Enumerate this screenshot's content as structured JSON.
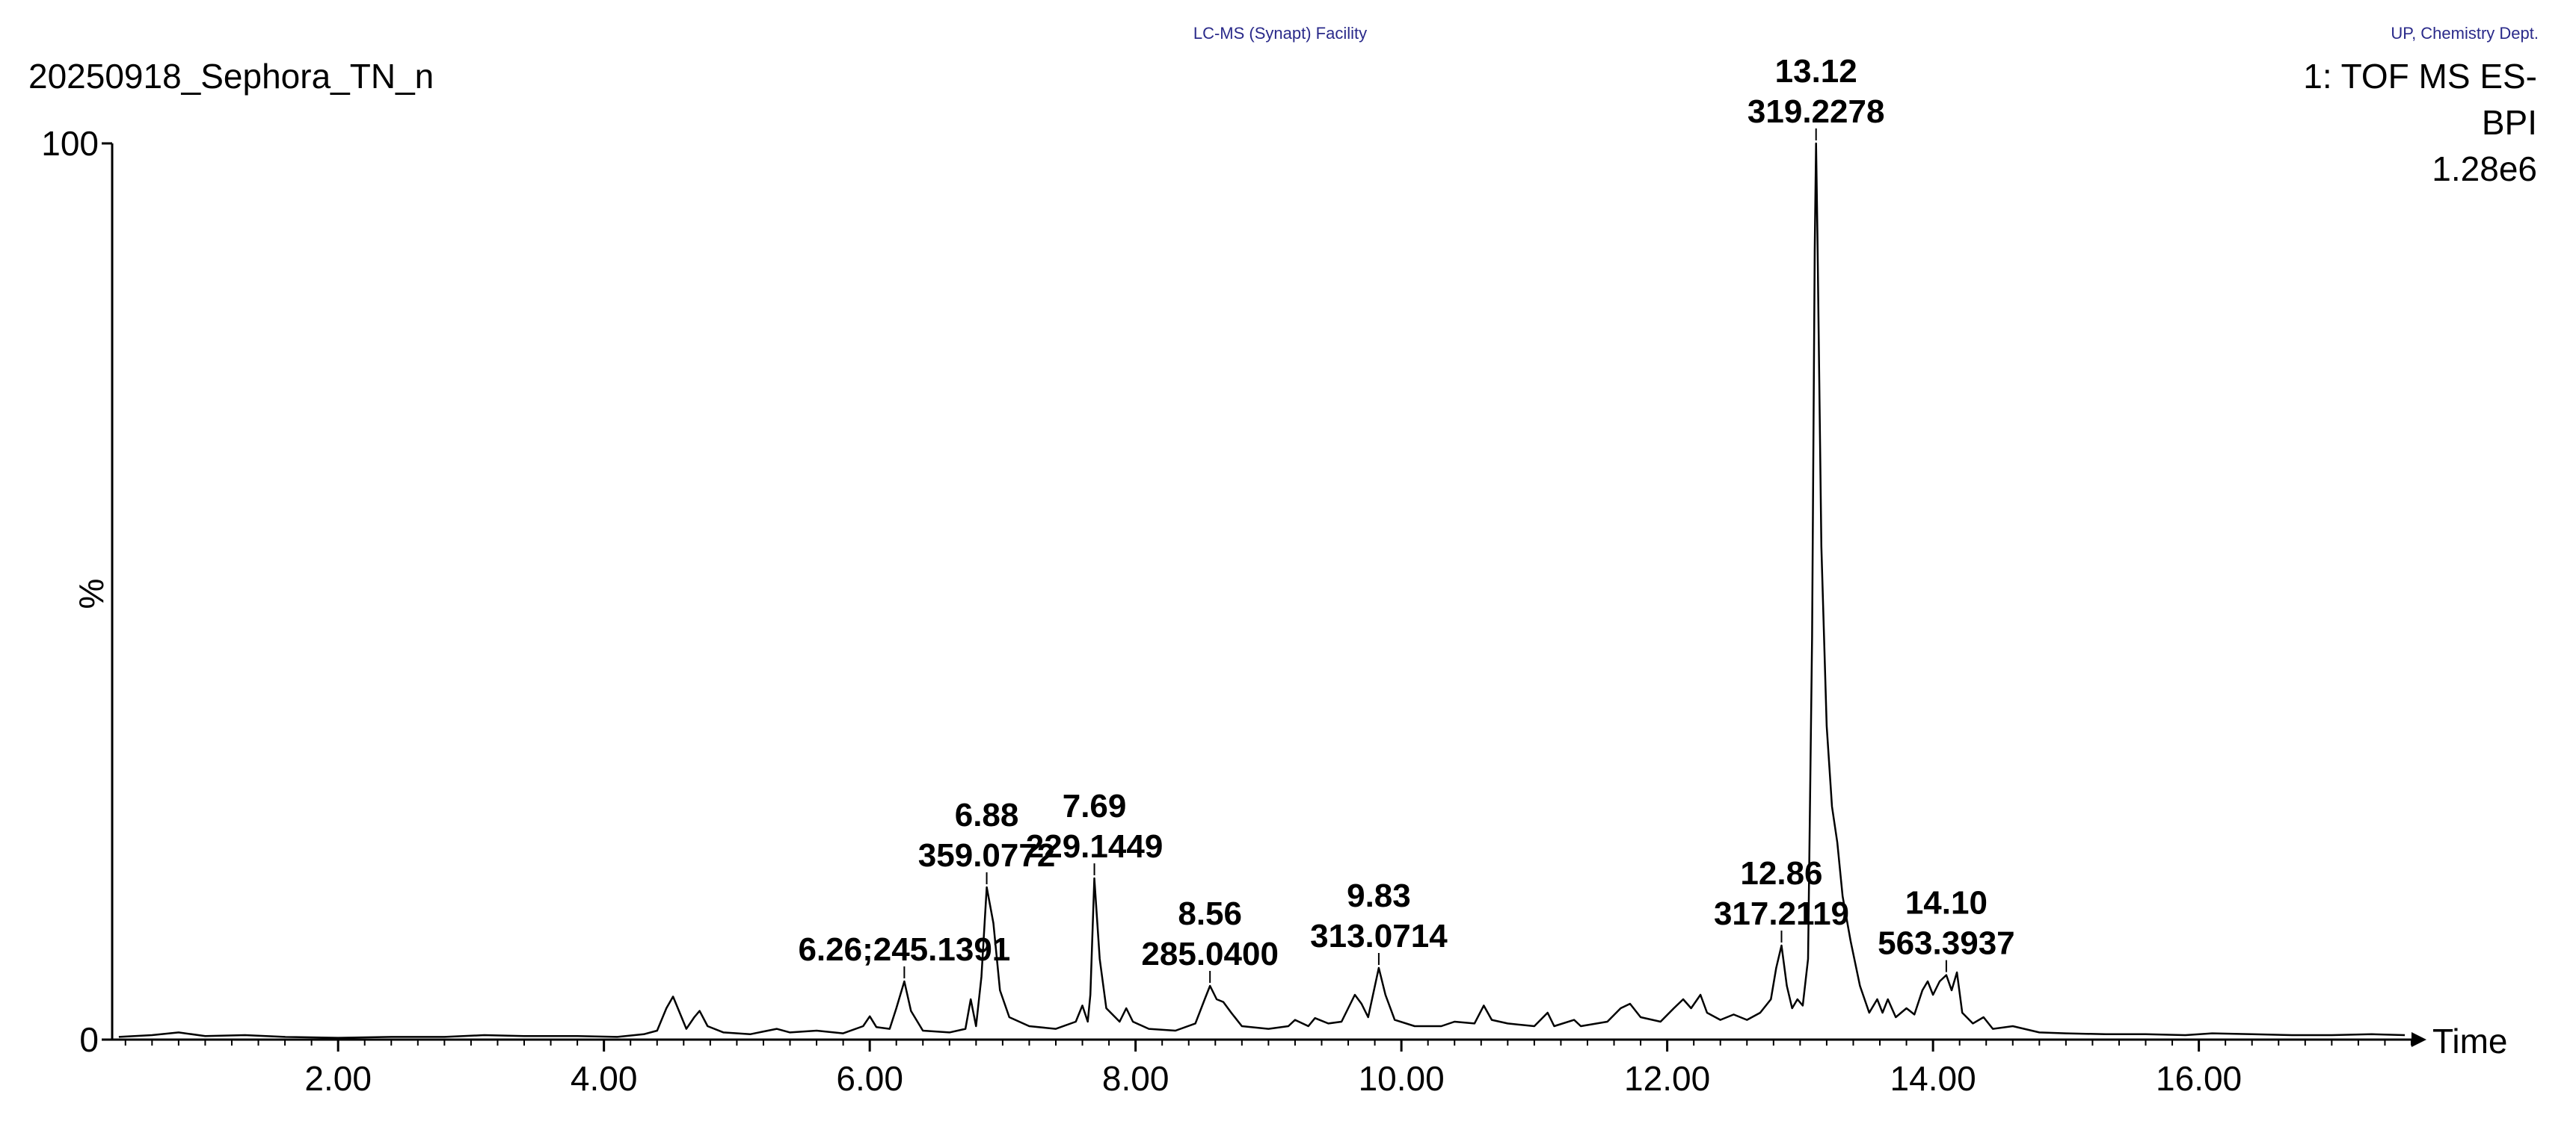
{
  "header": {
    "center_note": "LC-MS (Synapt) Facility",
    "right_note": "UP, Chemistry Dept.",
    "sample_name": "20250918_Sephora_TN_n",
    "trace_function": "1: TOF MS ES-",
    "trace_mode": "BPI",
    "trace_intensity": "1.28e6"
  },
  "colors": {
    "trace": "#000000",
    "header_note": "#2a2a8a",
    "background": "#ffffff"
  },
  "chart_data": {
    "type": "line",
    "title": "20250918_Sephora_TN_n",
    "xlabel": "Time",
    "ylabel": "%",
    "xlim": [
      0.3,
      17.6
    ],
    "ylim": [
      0,
      100
    ],
    "grid": false,
    "x_ticks": [
      2.0,
      4.0,
      6.0,
      8.0,
      10.0,
      12.0,
      14.0,
      16.0
    ],
    "x_tick_labels": [
      "2.00",
      "4.00",
      "6.00",
      "8.00",
      "10.00",
      "12.00",
      "14.00",
      "16.00"
    ],
    "y_ticks": [
      0,
      100
    ],
    "y_tick_labels": [
      "0",
      "100"
    ],
    "series": [
      {
        "points": [
          [
            0.35,
            0.3
          ],
          [
            0.6,
            0.5
          ],
          [
            0.8,
            0.8
          ],
          [
            1.0,
            0.4
          ],
          [
            1.3,
            0.5
          ],
          [
            1.6,
            0.3
          ],
          [
            2.0,
            0.2
          ],
          [
            2.4,
            0.3
          ],
          [
            2.8,
            0.3
          ],
          [
            3.1,
            0.5
          ],
          [
            3.4,
            0.4
          ],
          [
            3.8,
            0.4
          ],
          [
            4.1,
            0.3
          ],
          [
            4.3,
            0.6
          ],
          [
            4.4,
            1.0
          ],
          [
            4.47,
            3.5
          ],
          [
            4.52,
            4.8
          ],
          [
            4.57,
            3.0
          ],
          [
            4.62,
            1.2
          ],
          [
            4.68,
            2.5
          ],
          [
            4.72,
            3.2
          ],
          [
            4.78,
            1.5
          ],
          [
            4.9,
            0.8
          ],
          [
            5.1,
            0.6
          ],
          [
            5.3,
            1.2
          ],
          [
            5.4,
            0.8
          ],
          [
            5.6,
            1.0
          ],
          [
            5.8,
            0.7
          ],
          [
            5.95,
            1.5
          ],
          [
            6.0,
            2.6
          ],
          [
            6.05,
            1.4
          ],
          [
            6.15,
            1.2
          ],
          [
            6.2,
            3.5
          ],
          [
            6.26,
            6.5
          ],
          [
            6.31,
            3.2
          ],
          [
            6.4,
            1.0
          ],
          [
            6.6,
            0.8
          ],
          [
            6.72,
            1.2
          ],
          [
            6.76,
            4.5
          ],
          [
            6.8,
            1.5
          ],
          [
            6.84,
            7.0
          ],
          [
            6.88,
            17.0
          ],
          [
            6.93,
            13.0
          ],
          [
            6.98,
            5.5
          ],
          [
            7.05,
            2.5
          ],
          [
            7.2,
            1.5
          ],
          [
            7.4,
            1.2
          ],
          [
            7.55,
            2.0
          ],
          [
            7.6,
            3.8
          ],
          [
            7.64,
            2.0
          ],
          [
            7.66,
            5.0
          ],
          [
            7.69,
            18.0
          ],
          [
            7.73,
            9.0
          ],
          [
            7.78,
            3.5
          ],
          [
            7.88,
            2.0
          ],
          [
            7.93,
            3.5
          ],
          [
            7.98,
            2.0
          ],
          [
            8.1,
            1.2
          ],
          [
            8.3,
            1.0
          ],
          [
            8.45,
            1.8
          ],
          [
            8.52,
            4.5
          ],
          [
            8.56,
            6.0
          ],
          [
            8.61,
            4.5
          ],
          [
            8.66,
            4.2
          ],
          [
            8.72,
            3.0
          ],
          [
            8.8,
            1.5
          ],
          [
            9.0,
            1.2
          ],
          [
            9.15,
            1.5
          ],
          [
            9.2,
            2.2
          ],
          [
            9.3,
            1.5
          ],
          [
            9.35,
            2.4
          ],
          [
            9.45,
            1.8
          ],
          [
            9.55,
            2.0
          ],
          [
            9.6,
            3.5
          ],
          [
            9.65,
            5.0
          ],
          [
            9.7,
            4.0
          ],
          [
            9.75,
            2.5
          ],
          [
            9.83,
            8.0
          ],
          [
            9.88,
            5.0
          ],
          [
            9.95,
            2.2
          ],
          [
            10.1,
            1.5
          ],
          [
            10.3,
            1.5
          ],
          [
            10.4,
            2.0
          ],
          [
            10.55,
            1.8
          ],
          [
            10.62,
            3.8
          ],
          [
            10.68,
            2.2
          ],
          [
            10.8,
            1.8
          ],
          [
            11.0,
            1.5
          ],
          [
            11.1,
            3.0
          ],
          [
            11.15,
            1.5
          ],
          [
            11.3,
            2.2
          ],
          [
            11.35,
            1.5
          ],
          [
            11.55,
            2.0
          ],
          [
            11.65,
            3.5
          ],
          [
            11.72,
            4.0
          ],
          [
            11.8,
            2.5
          ],
          [
            11.95,
            2.0
          ],
          [
            12.05,
            3.5
          ],
          [
            12.12,
            4.5
          ],
          [
            12.18,
            3.5
          ],
          [
            12.25,
            5.0
          ],
          [
            12.3,
            3.0
          ],
          [
            12.4,
            2.2
          ],
          [
            12.5,
            2.8
          ],
          [
            12.6,
            2.2
          ],
          [
            12.7,
            3.0
          ],
          [
            12.78,
            4.5
          ],
          [
            12.82,
            8.0
          ],
          [
            12.86,
            10.5
          ],
          [
            12.9,
            6.0
          ],
          [
            12.94,
            3.5
          ],
          [
            12.98,
            4.5
          ],
          [
            13.02,
            3.8
          ],
          [
            13.06,
            9.0
          ],
          [
            13.09,
            45.0
          ],
          [
            13.11,
            88.0
          ],
          [
            13.12,
            100.0
          ],
          [
            13.13,
            90.0
          ],
          [
            13.16,
            55.0
          ],
          [
            13.2,
            35.0
          ],
          [
            13.24,
            26.0
          ],
          [
            13.28,
            22.0
          ],
          [
            13.32,
            16.0
          ],
          [
            13.38,
            11.0
          ],
          [
            13.45,
            6.0
          ],
          [
            13.52,
            3.0
          ],
          [
            13.58,
            4.5
          ],
          [
            13.62,
            3.0
          ],
          [
            13.66,
            4.5
          ],
          [
            13.72,
            2.5
          ],
          [
            13.8,
            3.5
          ],
          [
            13.86,
            2.8
          ],
          [
            13.92,
            5.5
          ],
          [
            13.96,
            6.5
          ],
          [
            14.0,
            5.0
          ],
          [
            14.05,
            6.5
          ],
          [
            14.1,
            7.2
          ],
          [
            14.14,
            5.5
          ],
          [
            14.18,
            7.5
          ],
          [
            14.22,
            3.0
          ],
          [
            14.3,
            1.8
          ],
          [
            14.38,
            2.5
          ],
          [
            14.45,
            1.2
          ],
          [
            14.6,
            1.5
          ],
          [
            14.8,
            0.8
          ],
          [
            15.0,
            0.7
          ],
          [
            15.3,
            0.6
          ],
          [
            15.6,
            0.6
          ],
          [
            15.9,
            0.5
          ],
          [
            16.1,
            0.7
          ],
          [
            16.4,
            0.6
          ],
          [
            16.7,
            0.5
          ],
          [
            17.0,
            0.5
          ],
          [
            17.3,
            0.6
          ],
          [
            17.55,
            0.5
          ]
        ]
      }
    ],
    "annotations": [
      {
        "x": 6.26,
        "y": 6.5,
        "lines": [
          "6.26;245.1391"
        ]
      },
      {
        "x": 6.88,
        "y": 17.0,
        "lines": [
          "6.88",
          "359.0772"
        ]
      },
      {
        "x": 7.69,
        "y": 18.0,
        "lines": [
          "7.69",
          "229.1449"
        ]
      },
      {
        "x": 8.56,
        "y": 6.0,
        "lines": [
          "8.56",
          "285.0400"
        ]
      },
      {
        "x": 9.83,
        "y": 8.0,
        "lines": [
          "9.83",
          "313.0714"
        ]
      },
      {
        "x": 12.86,
        "y": 10.5,
        "lines": [
          "12.86",
          "317.2119"
        ]
      },
      {
        "x": 13.12,
        "y": 100.0,
        "lines": [
          "13.12",
          "319.2278"
        ]
      },
      {
        "x": 14.1,
        "y": 7.2,
        "lines": [
          "14.10",
          "563.3937"
        ]
      }
    ]
  }
}
